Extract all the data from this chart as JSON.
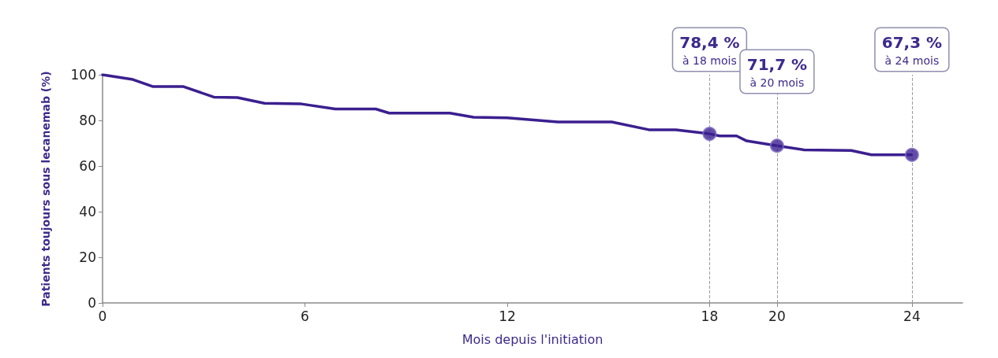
{
  "chart_data": {
    "type": "line",
    "xlabel": "Mois depuis l'initiation",
    "ylabel": "Patients toujours sous lecanemab (%)",
    "xlim": [
      0,
      25.5
    ],
    "xticks": [
      0,
      6,
      12,
      18,
      20,
      24
    ],
    "ylim": [
      0,
      100
    ],
    "yticks": [
      0,
      20,
      40,
      60,
      80,
      100
    ],
    "grid": false,
    "marker": "none",
    "line_style": "solid",
    "series": [
      {
        "color": "#3b1f8f",
        "x": [
          0,
          0.9,
          1.5,
          2.4,
          3.3,
          4.0,
          4.8,
          5.9,
          6.9,
          8.1,
          8.5,
          10.3,
          11.0,
          12,
          13.5,
          15.1,
          16.2,
          17,
          18,
          18.3,
          18.8,
          19.1,
          20,
          20.8,
          22.2,
          22.8,
          24
        ],
        "values": [
          100,
          97.9,
          94.8,
          94.8,
          90.2,
          90,
          87.5,
          87.2,
          85,
          85,
          83.2,
          83.2,
          81.4,
          81.1,
          79.3,
          79.3,
          75.9,
          75.9,
          74.1,
          73.2,
          73.2,
          71,
          68.9,
          67.1,
          66.8,
          64.9,
          64.9
        ]
      },
      {
        "type": "scatter",
        "color": "#3b1f8f",
        "marker": "circle",
        "x": [
          18,
          20,
          24
        ],
        "values": [
          74.1,
          68.9,
          64.9
        ]
      }
    ],
    "ref_lines": [
      {
        "axis": "x",
        "value": 18,
        "label": "78,4 %\nà 18 mois",
        "color": "#9a9aa6",
        "line_style": "dashed"
      },
      {
        "axis": "x",
        "value": 20,
        "label": "71,7 %\nà 20 mois",
        "color": "#9a9aa6",
        "line_style": "dashed"
      },
      {
        "axis": "x",
        "value": 24,
        "label": "67,3 %\nà 24 mois",
        "color": "#9a9aa6",
        "line_style": "dashed"
      }
    ]
  }
}
